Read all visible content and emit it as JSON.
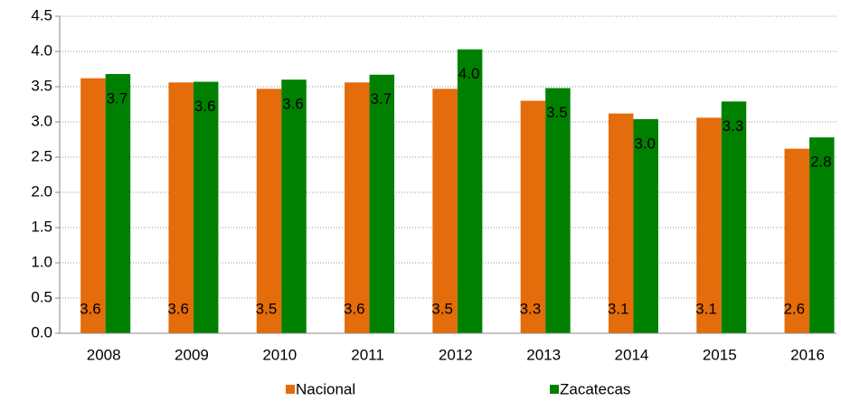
{
  "chart_data": {
    "type": "bar",
    "categories": [
      "2008",
      "2009",
      "2010",
      "2011",
      "2012",
      "2013",
      "2014",
      "2015",
      "2016"
    ],
    "series": [
      {
        "name": "Nacional",
        "color": "#e46c0a",
        "values": [
          3.62,
          3.56,
          3.47,
          3.56,
          3.47,
          3.3,
          3.12,
          3.06,
          2.62
        ],
        "value_labels": [
          "3.6",
          "3.6",
          "3.5",
          "3.6",
          "3.5",
          "3.3",
          "3.1",
          "3.1",
          "2.6"
        ]
      },
      {
        "name": "Zacatecas",
        "color": "#008000",
        "values": [
          3.68,
          3.57,
          3.6,
          3.67,
          4.03,
          3.48,
          3.04,
          3.29,
          2.78
        ],
        "value_labels": [
          "3.7",
          "3.6",
          "3.6",
          "3.7",
          "4.0",
          "3.5",
          "3.0",
          "3.3",
          "2.8"
        ]
      }
    ],
    "ylim": [
      0,
      4.5
    ],
    "yticks": [
      {
        "value": 0,
        "label": "0.0"
      },
      0.5,
      {
        "value": 1,
        "label": "1.0"
      },
      1.5,
      {
        "value": 2,
        "label": "2.0"
      },
      2.5,
      {
        "value": 3,
        "label": "3.0"
      },
      3.5,
      {
        "value": 4,
        "label": "4.0"
      },
      4.5
    ],
    "grid": true,
    "legend": "bottom"
  }
}
